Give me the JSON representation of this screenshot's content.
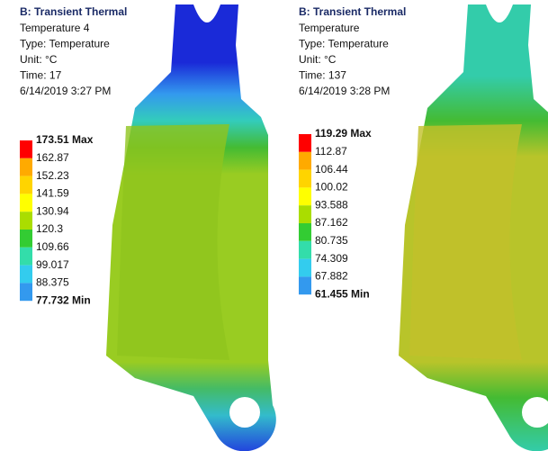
{
  "panels": [
    {
      "title": "B: Transient Thermal",
      "lines": [
        "Temperature 4",
        "Type: Temperature",
        "Unit: °C",
        "Time: 17",
        "6/14/2019 3:27 PM"
      ],
      "legend": {
        "labels": [
          "173.51 Max",
          "162.87",
          "152.23",
          "141.59",
          "130.94",
          "120.3",
          "109.66",
          "99.017",
          "88.375",
          "77.732 Min"
        ],
        "colors": [
          "#ff0000",
          "#ffaa00",
          "#ffd400",
          "#ffff00",
          "#aadd00",
          "#33cc33",
          "#33ddaa",
          "#33ccee",
          "#3399ee",
          "#0000ff"
        ]
      }
    },
    {
      "title": "B: Transient Thermal",
      "lines": [
        "Temperature",
        "Type: Temperature",
        "Unit: °C",
        "Time: 137",
        "6/14/2019 3:28 PM"
      ],
      "legend": {
        "labels": [
          "119.29 Max",
          "112.87",
          "106.44",
          "100.02",
          "93.588",
          "87.162",
          "80.735",
          "74.309",
          "67.882",
          "61.455 Min"
        ],
        "colors": [
          "#ff0000",
          "#ffaa00",
          "#ffd400",
          "#ffff00",
          "#aadd00",
          "#33cc33",
          "#33ddaa",
          "#33ccee",
          "#3399ee",
          "#0000ff"
        ]
      }
    }
  ]
}
